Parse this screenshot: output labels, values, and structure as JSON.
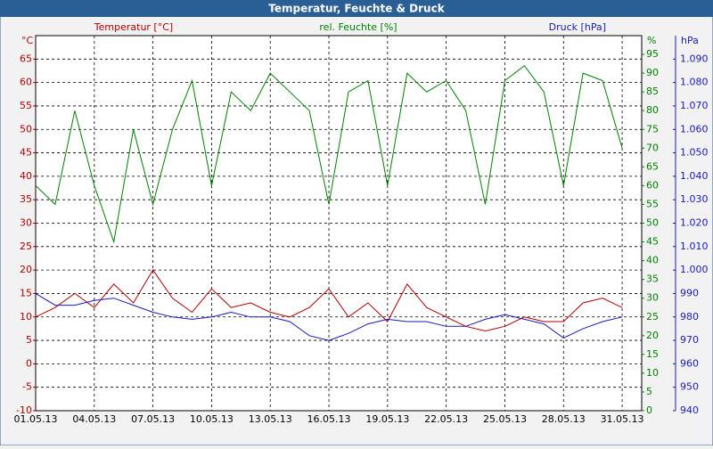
{
  "chart_data": {
    "type": "line",
    "title": "Temperatur, Feuchte & Druck",
    "ylabel": "°C",
    "y2label": "%",
    "y3label": "hPa",
    "x": [
      "2013-05-01",
      "2013-05-02",
      "2013-05-03",
      "2013-05-04",
      "2013-05-05",
      "2013-05-06",
      "2013-05-07",
      "2013-05-08",
      "2013-05-09",
      "2013-05-10",
      "2013-05-11",
      "2013-05-12",
      "2013-05-13",
      "2013-05-14",
      "2013-05-15",
      "2013-05-16",
      "2013-05-17",
      "2013-05-18",
      "2013-05-19",
      "2013-05-20",
      "2013-05-21",
      "2013-05-22",
      "2013-05-23",
      "2013-05-24",
      "2013-05-25",
      "2013-05-26",
      "2013-05-27",
      "2013-05-28",
      "2013-05-29",
      "2013-05-30",
      "2013-05-31"
    ],
    "xlim": [
      "2013-05-01",
      "2013-06-01"
    ],
    "xticks": [
      {
        "value": "2013-05-01",
        "label": "01.05.13"
      },
      {
        "value": "2013-05-04",
        "label": "04.05.13"
      },
      {
        "value": "2013-05-07",
        "label": "07.05.13"
      },
      {
        "value": "2013-05-10",
        "label": "10.05.13"
      },
      {
        "value": "2013-05-13",
        "label": "13.05.13"
      },
      {
        "value": "2013-05-16",
        "label": "16.05.13"
      },
      {
        "value": "2013-05-19",
        "label": "19.05.13"
      },
      {
        "value": "2013-05-22",
        "label": "22.05.13"
      },
      {
        "value": "2013-05-25",
        "label": "25.05.13"
      },
      {
        "value": "2013-05-28",
        "label": "28.05.13"
      },
      {
        "value": "2013-05-31",
        "label": "31.05.13"
      }
    ],
    "ylim": [
      -10,
      70
    ],
    "yticks": [
      -10,
      -5,
      0,
      5,
      10,
      15,
      20,
      25,
      30,
      35,
      40,
      45,
      50,
      55,
      60,
      65
    ],
    "y2lim": [
      0,
      100
    ],
    "y2ticks": [
      0,
      5,
      10,
      15,
      20,
      25,
      30,
      35,
      40,
      45,
      50,
      55,
      60,
      65,
      70,
      75,
      80,
      85,
      90,
      95
    ],
    "y3lim": [
      940,
      1100
    ],
    "y3ticks": [
      940,
      950,
      960,
      970,
      980,
      990,
      {
        "value": 1000,
        "label": "1.000"
      },
      {
        "value": 1010,
        "label": "1.010"
      },
      {
        "value": 1020,
        "label": "1.020"
      },
      {
        "value": 1030,
        "label": "1.030"
      },
      {
        "value": 1040,
        "label": "1.040"
      },
      {
        "value": 1050,
        "label": "1.050"
      },
      {
        "value": 1060,
        "label": "1.060"
      },
      {
        "value": 1070,
        "label": "1.070"
      },
      {
        "value": 1080,
        "label": "1.080"
      },
      {
        "value": 1090,
        "label": "1.090"
      }
    ],
    "grid": true,
    "series": [
      {
        "name": "Temperatur [°C]",
        "color": "#b00000",
        "axis": "y",
        "values": [
          10,
          12,
          15,
          12,
          17,
          13,
          20,
          14,
          11,
          16,
          12,
          13,
          11,
          10,
          12,
          16,
          10,
          13,
          9,
          17,
          12,
          10,
          8,
          7,
          8,
          10,
          9,
          9,
          13,
          14,
          12
        ]
      },
      {
        "name": "rel. Feuchte [%]",
        "color": "#008000",
        "axis": "y2",
        "values": [
          60,
          55,
          80,
          60,
          45,
          75,
          55,
          75,
          88,
          60,
          85,
          80,
          90,
          85,
          80,
          55,
          85,
          88,
          60,
          90,
          85,
          88,
          80,
          55,
          88,
          92,
          85,
          60,
          90,
          88,
          70
        ]
      },
      {
        "name": "Druck [hPa]",
        "color": "#1a1ab8",
        "axis": "y3",
        "values": [
          990,
          985,
          985,
          987,
          988,
          985,
          982,
          980,
          979,
          980,
          982,
          980,
          980,
          978,
          972,
          970,
          973,
          977,
          979,
          978,
          978,
          976,
          976,
          979,
          981,
          979,
          977,
          971,
          975,
          978,
          980
        ]
      }
    ]
  }
}
